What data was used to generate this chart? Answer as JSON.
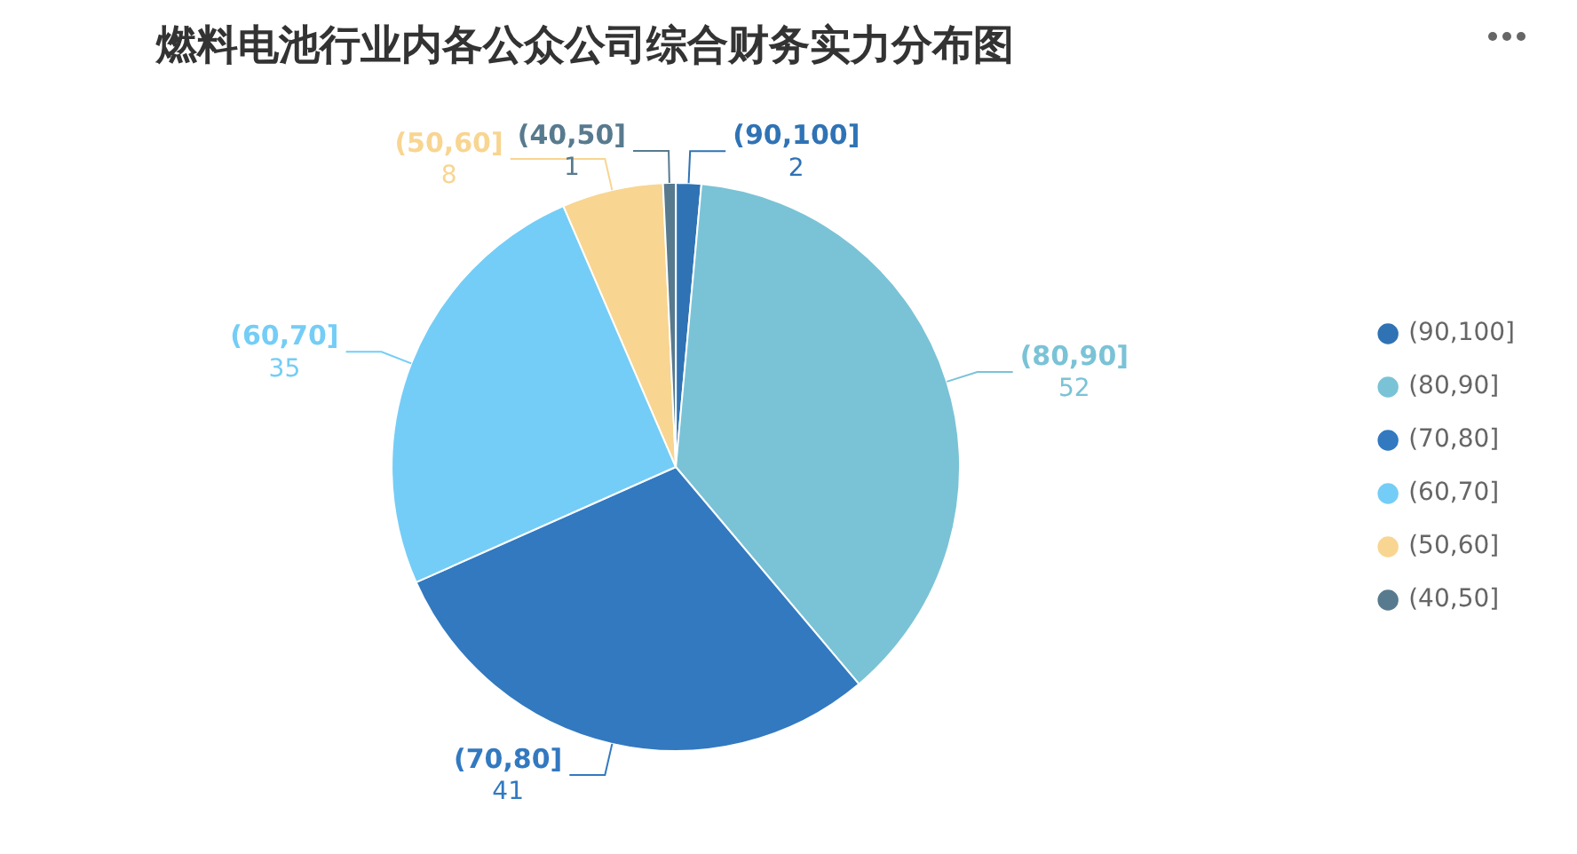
{
  "chart_data": {
    "type": "pie",
    "title": "燃料电池行业内各公众公司综合财务实力分布图",
    "categories": [
      "(90,100]",
      "(80,90]",
      "(70,80]",
      "(60,70]",
      "(50,60]",
      "(40,50]"
    ],
    "values": [
      2,
      52,
      41,
      35,
      8,
      1
    ],
    "colors": [
      "#2f73b5",
      "#7ac3d6",
      "#3279c0",
      "#74cdf6",
      "#f8d591",
      "#587a8f"
    ],
    "data_labels": true,
    "legend": "right"
  }
}
